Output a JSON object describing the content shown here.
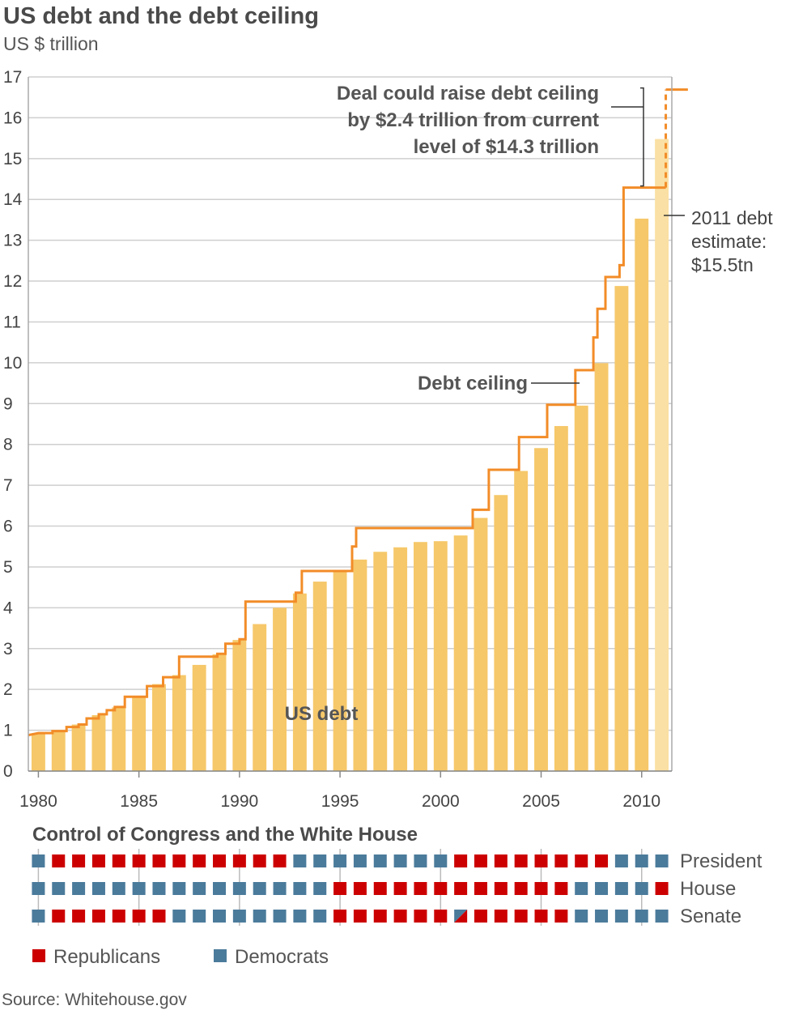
{
  "colors": {
    "bar": "#f6c86a",
    "bar_estimate": "#fae0a4",
    "ceiling": "#f28c28",
    "republican": "#cc0000",
    "democrat": "#4b7b9b",
    "grid": "#cfcfcf",
    "text": "#444444"
  },
  "chart_data": {
    "type": "bar",
    "title": "US debt and the debt ceiling",
    "subtitle": "US $ trillion",
    "ylim": [
      0,
      17
    ],
    "yticks": [
      0,
      1,
      2,
      3,
      4,
      5,
      6,
      7,
      8,
      9,
      10,
      11,
      12,
      13,
      14,
      15,
      16,
      17
    ],
    "xlim": [
      1979.5,
      2011.5
    ],
    "xticks": [
      1980,
      1985,
      1990,
      1995,
      2000,
      2005,
      2010
    ],
    "grid": true,
    "series": [
      {
        "name": "US debt",
        "x": [
          1980,
          1981,
          1982,
          1983,
          1984,
          1985,
          1986,
          1987,
          1988,
          1989,
          1990,
          1991,
          1992,
          1993,
          1994,
          1995,
          1996,
          1997,
          1998,
          1999,
          2000,
          2001,
          2002,
          2003,
          2004,
          2005,
          2006,
          2007,
          2008,
          2009,
          2010,
          2011
        ],
        "values": [
          0.91,
          1.0,
          1.14,
          1.37,
          1.56,
          1.82,
          2.13,
          2.35,
          2.6,
          2.86,
          3.21,
          3.6,
          4.0,
          4.35,
          4.64,
          4.92,
          5.18,
          5.37,
          5.48,
          5.61,
          5.63,
          5.77,
          6.2,
          6.76,
          7.35,
          7.91,
          8.45,
          8.95,
          9.99,
          11.88,
          13.53,
          15.48
        ],
        "estimate_from": 2011
      },
      {
        "name": "Debt ceiling",
        "type": "step",
        "points": [
          [
            1979.5,
            0.88
          ],
          [
            1980.0,
            0.93
          ],
          [
            1980.7,
            0.93
          ],
          [
            1980.7,
            0.98
          ],
          [
            1981.4,
            0.98
          ],
          [
            1981.4,
            1.08
          ],
          [
            1982.0,
            1.08
          ],
          [
            1982.0,
            1.14
          ],
          [
            1982.4,
            1.14
          ],
          [
            1982.4,
            1.29
          ],
          [
            1983.0,
            1.29
          ],
          [
            1983.0,
            1.39
          ],
          [
            1983.4,
            1.39
          ],
          [
            1983.4,
            1.49
          ],
          [
            1983.8,
            1.49
          ],
          [
            1983.8,
            1.57
          ],
          [
            1984.3,
            1.57
          ],
          [
            1984.3,
            1.82
          ],
          [
            1985.4,
            1.82
          ],
          [
            1985.4,
            2.08
          ],
          [
            1986.2,
            2.08
          ],
          [
            1986.2,
            2.3
          ],
          [
            1987.0,
            2.3
          ],
          [
            1987.0,
            2.8
          ],
          [
            1988.9,
            2.8
          ],
          [
            1988.9,
            2.87
          ],
          [
            1989.3,
            2.87
          ],
          [
            1989.3,
            3.12
          ],
          [
            1990.0,
            3.12
          ],
          [
            1990.0,
            3.23
          ],
          [
            1990.3,
            3.23
          ],
          [
            1990.3,
            4.15
          ],
          [
            1992.8,
            4.15
          ],
          [
            1992.8,
            4.37
          ],
          [
            1993.1,
            4.37
          ],
          [
            1993.1,
            4.9
          ],
          [
            1995.6,
            4.9
          ],
          [
            1995.6,
            5.5
          ],
          [
            1995.8,
            5.5
          ],
          [
            1995.8,
            5.95
          ],
          [
            2001.6,
            5.95
          ],
          [
            2001.6,
            6.4
          ],
          [
            2002.4,
            6.4
          ],
          [
            2002.4,
            7.38
          ],
          [
            2003.9,
            7.38
          ],
          [
            2003.9,
            8.18
          ],
          [
            2005.3,
            8.18
          ],
          [
            2005.3,
            8.97
          ],
          [
            2006.7,
            8.97
          ],
          [
            2006.7,
            9.82
          ],
          [
            2007.6,
            9.82
          ],
          [
            2007.6,
            10.62
          ],
          [
            2007.8,
            10.62
          ],
          [
            2007.8,
            11.32
          ],
          [
            2008.2,
            11.32
          ],
          [
            2008.2,
            12.1
          ],
          [
            2008.9,
            12.1
          ],
          [
            2008.9,
            12.39
          ],
          [
            2009.1,
            12.39
          ],
          [
            2009.1,
            14.29
          ],
          [
            2011.2,
            14.29
          ]
        ],
        "proposed": [
          [
            2011.2,
            14.29
          ],
          [
            2011.2,
            16.69
          ],
          [
            2012.3,
            16.69
          ]
        ]
      }
    ],
    "annotations": {
      "deal_lines": [
        "Deal could raise debt ceiling",
        "by $2.4 trillion from current",
        "level of $14.3 trillion"
      ],
      "estimate_lines": [
        "2011 debt",
        "estimate:",
        "$15.5tn"
      ],
      "ceiling_label": "Debt ceiling",
      "debt_label": "US debt"
    }
  },
  "control": {
    "title": "Control of Congress and the White House",
    "years_start": 1980,
    "rows": [
      {
        "label": "President",
        "party": "DRRRRRRRRRRRRDDDDDDDDRRRRRRRRDDD"
      },
      {
        "label": "House",
        "party": "DDDDDDDDDDDDDDDRRRRRRRRRRRRDDDDR"
      },
      {
        "label": "Senate",
        "party": "DRRRRRRDDDDDDDDRRRRRRXRRRRRDDDDD"
      }
    ]
  },
  "legend": {
    "republicans": "Republicans",
    "democrats": "Democrats"
  },
  "source": "Source: Whitehouse.gov"
}
